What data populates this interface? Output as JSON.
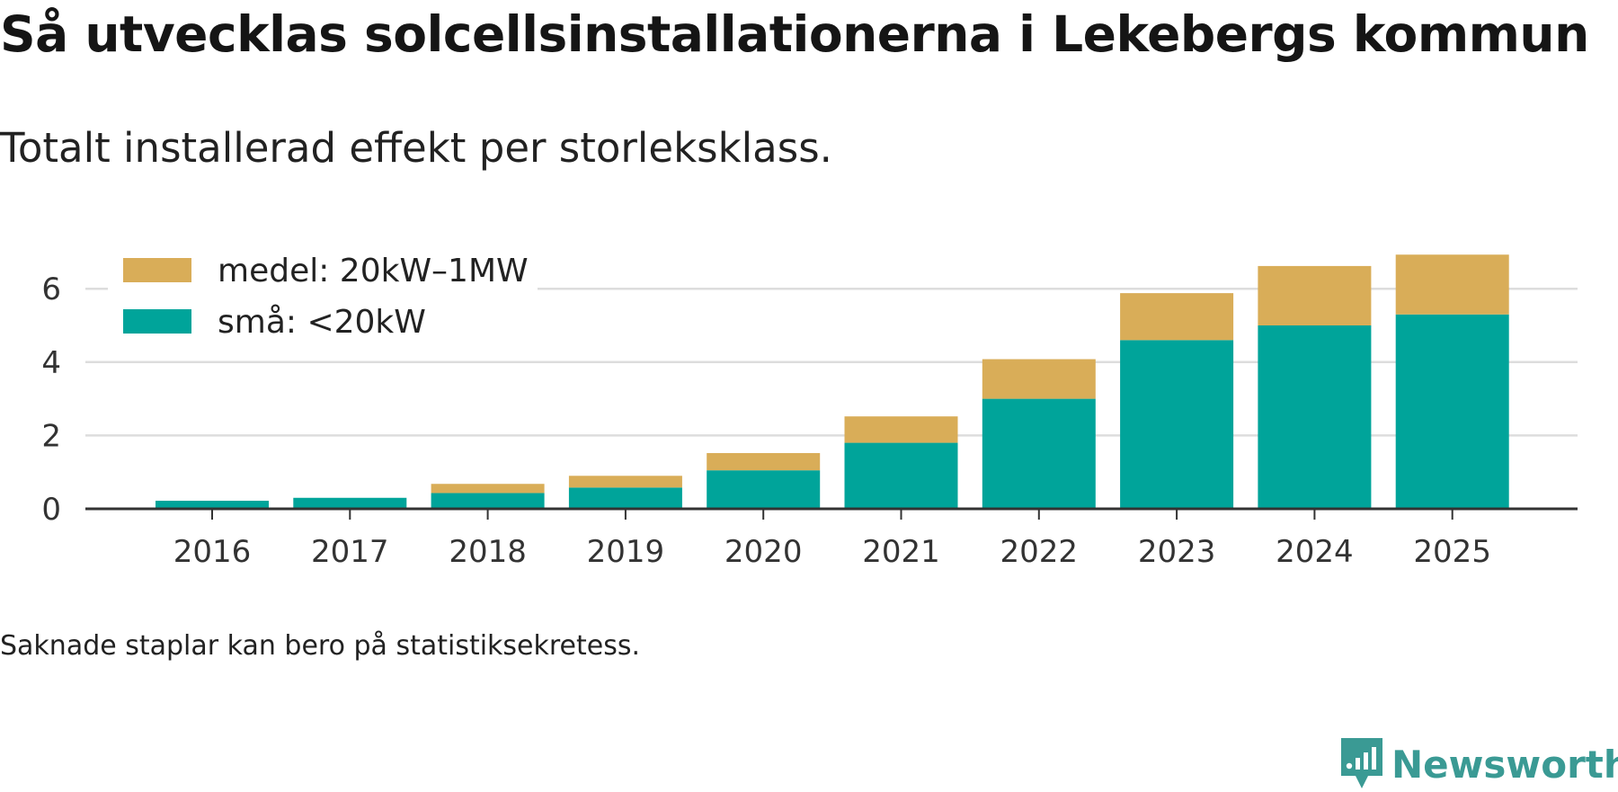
{
  "header": {
    "title": "Så utvecklas solcellsinstallationerna i Lekebergs kommun",
    "subtitle": "Totalt installerad effekt per storleksklass."
  },
  "footer": {
    "note": "Saknade staplar kan bero på statistiksekretess.",
    "brand": "Newsworthy"
  },
  "colors": {
    "small": "#00a49a",
    "medium": "#d9ad58",
    "grid": "#dddddd",
    "axis": "#333333",
    "tick_text": "#333333",
    "brand": "#3a9a94"
  },
  "chart_data": {
    "type": "bar",
    "stacked": true,
    "title": "Så utvecklas solcellsinstallationerna i Lekebergs kommun",
    "subtitle": "Totalt installerad effekt per storleksklass.",
    "xlabel": "",
    "ylabel": "",
    "categories": [
      "2016",
      "2017",
      "2018",
      "2019",
      "2020",
      "2021",
      "2022",
      "2023",
      "2024",
      "2025"
    ],
    "series": [
      {
        "name": "små: <20kW",
        "color": "#00a49a",
        "values": [
          0.22,
          0.3,
          0.43,
          0.58,
          1.05,
          1.8,
          3.0,
          4.6,
          5.0,
          5.3
        ]
      },
      {
        "name": "medel: 20kW–1MW",
        "color": "#d9ad58",
        "values": [
          0.0,
          0.0,
          0.25,
          0.32,
          0.47,
          0.72,
          1.08,
          1.28,
          1.62,
          1.63
        ]
      }
    ],
    "yticks": [
      0,
      2,
      4,
      6
    ],
    "ylim": [
      0,
      7
    ],
    "grid": true,
    "legend": {
      "position": "top-left",
      "order": [
        "medel: 20kW–1MW",
        "små: <20kW"
      ]
    }
  }
}
